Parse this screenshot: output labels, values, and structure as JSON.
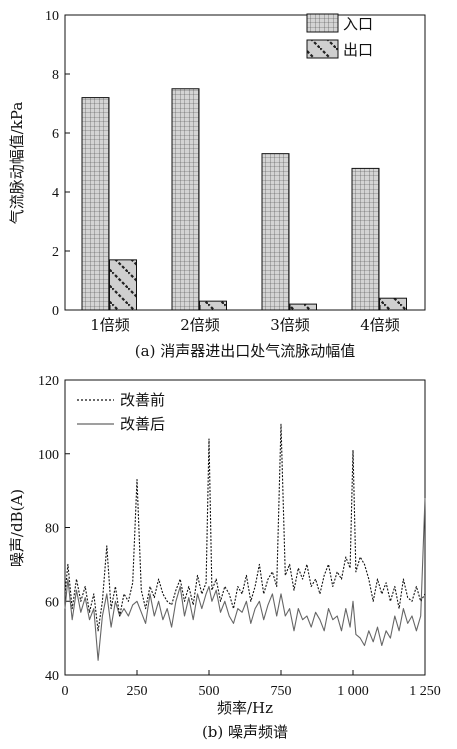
{
  "chart_data": [
    {
      "type": "bar",
      "ylabel": "气流脉动幅值/kPa",
      "caption": "(a) 消声器进出口处气流脉动幅值",
      "categories": [
        "1倍频",
        "2倍频",
        "3倍频",
        "4倍频"
      ],
      "ylim": [
        0,
        10
      ],
      "yticks": [
        "0",
        "2",
        "4",
        "6",
        "8",
        "10"
      ],
      "legend_position": "top-right",
      "series": [
        {
          "name": "入口",
          "values": [
            7.2,
            7.5,
            5.3,
            4.8
          ],
          "pattern": "grid",
          "color": "#c8c8c8"
        },
        {
          "name": "出口",
          "values": [
            1.7,
            0.3,
            0.2,
            0.4
          ],
          "pattern": "diagonal-hatch",
          "color": "#c8c8c8"
        }
      ]
    },
    {
      "type": "line",
      "ylabel": "噪声/dB(A)",
      "xlabel": "频率/Hz",
      "caption": "(b) 噪声频谱",
      "xlim": [
        0,
        1250
      ],
      "ylim": [
        40,
        120
      ],
      "xticks": [
        "0",
        "250",
        "500",
        "750",
        "1 000",
        "1 250"
      ],
      "yticks": [
        "40",
        "60",
        "80",
        "100",
        "120"
      ],
      "legend_position": "top-left",
      "series": [
        {
          "name": "改善前",
          "style": "dotted",
          "color": "#111111",
          "x": [
            0,
            10,
            25,
            40,
            55,
            70,
            85,
            100,
            115,
            130,
            145,
            160,
            175,
            190,
            205,
            220,
            235,
            250,
            265,
            280,
            295,
            310,
            325,
            340,
            355,
            370,
            385,
            400,
            415,
            430,
            445,
            460,
            475,
            490,
            500,
            510,
            525,
            540,
            555,
            570,
            585,
            600,
            615,
            630,
            645,
            660,
            675,
            690,
            705,
            720,
            735,
            750,
            765,
            780,
            795,
            810,
            825,
            840,
            855,
            870,
            885,
            900,
            915,
            930,
            945,
            960,
            975,
            990,
            1000,
            1010,
            1025,
            1040,
            1055,
            1070,
            1085,
            1100,
            1115,
            1130,
            1145,
            1160,
            1175,
            1190,
            1205,
            1220,
            1235,
            1250
          ],
          "y": [
            62,
            70,
            58,
            66,
            60,
            64,
            57,
            62,
            52,
            60,
            75,
            58,
            64,
            56,
            62,
            60,
            65,
            93,
            63,
            58,
            64,
            61,
            66,
            62,
            60,
            59,
            63,
            66,
            60,
            64,
            59,
            67,
            62,
            65,
            104,
            63,
            66,
            60,
            64,
            62,
            58,
            64,
            62,
            67,
            60,
            64,
            70,
            62,
            66,
            68,
            64,
            108,
            67,
            70,
            63,
            69,
            66,
            70,
            64,
            66,
            62,
            67,
            70,
            64,
            68,
            66,
            72,
            69,
            101,
            68,
            72,
            70,
            66,
            60,
            66,
            62,
            65,
            60,
            64,
            58,
            66,
            61,
            60,
            64,
            60,
            62
          ]
        },
        {
          "name": "改善后",
          "style": "solid",
          "color": "#666666",
          "x": [
            0,
            10,
            25,
            40,
            55,
            70,
            85,
            100,
            115,
            130,
            145,
            160,
            175,
            190,
            205,
            220,
            235,
            250,
            265,
            280,
            295,
            310,
            325,
            340,
            355,
            370,
            385,
            400,
            415,
            430,
            445,
            460,
            475,
            490,
            500,
            510,
            525,
            540,
            555,
            570,
            585,
            600,
            615,
            630,
            645,
            660,
            675,
            690,
            705,
            720,
            735,
            750,
            765,
            780,
            795,
            810,
            825,
            840,
            855,
            870,
            885,
            900,
            915,
            930,
            945,
            960,
            975,
            990,
            1000,
            1010,
            1025,
            1040,
            1055,
            1070,
            1085,
            1100,
            1115,
            1130,
            1145,
            1160,
            1175,
            1190,
            1205,
            1220,
            1235,
            1250
          ],
          "y": [
            58,
            66,
            55,
            63,
            57,
            61,
            55,
            58,
            44,
            56,
            62,
            53,
            60,
            56,
            58,
            56,
            59,
            60,
            57,
            54,
            62,
            56,
            60,
            55,
            58,
            53,
            60,
            64,
            56,
            61,
            55,
            62,
            58,
            62,
            64,
            60,
            63,
            57,
            60,
            56,
            54,
            58,
            57,
            60,
            54,
            58,
            60,
            55,
            59,
            62,
            56,
            62,
            56,
            58,
            52,
            58,
            55,
            56,
            53,
            57,
            55,
            52,
            58,
            55,
            56,
            52,
            58,
            53,
            60,
            51,
            50,
            48,
            52,
            49,
            53,
            48,
            52,
            50,
            56,
            52,
            58,
            54,
            56,
            52,
            56,
            88
          ]
        }
      ]
    }
  ]
}
